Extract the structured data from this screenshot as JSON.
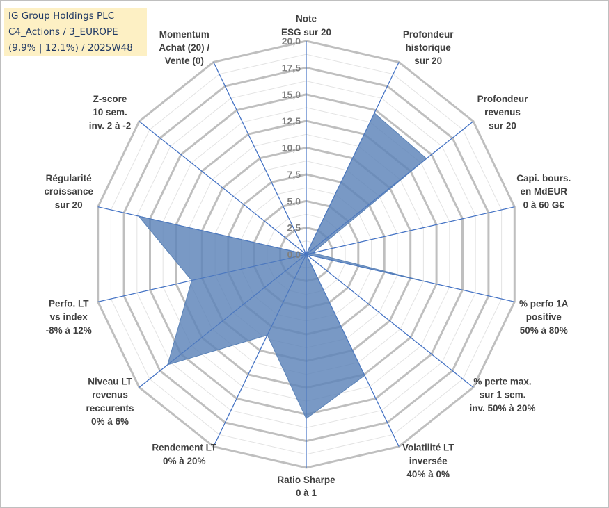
{
  "title": {
    "line1": "IG Group Holdings PLC",
    "line2": "C4_Actions / 3_EUROPE",
    "line3": "(9,9% | 12,1%) / 2025W48"
  },
  "chart_data": {
    "type": "radar",
    "rmin": 0,
    "rmax": 20,
    "tick_step": 2.5,
    "ticks": [
      "0,0",
      "2,5",
      "5,0",
      "7,5",
      "10,0",
      "12,5",
      "15,0",
      "17,5",
      "20,0"
    ],
    "axes": [
      {
        "label": [
          "Note",
          "ESG sur 20"
        ],
        "value": 0
      },
      {
        "label": [
          "Profondeur",
          "historique",
          "sur 20"
        ],
        "value": 14.7
      },
      {
        "label": [
          "Profondeur",
          "revenus",
          "sur 20"
        ],
        "value": 14.4
      },
      {
        "label": [
          "Capi. bours.",
          "en MdEUR",
          "0 à 60 G€"
        ],
        "value": 0.6
      },
      {
        "label": [
          "% perfo 1A",
          "positive",
          "50% à 80%"
        ],
        "value": 11.7
      },
      {
        "label": [
          "% perte max.",
          "sur 1 sem.",
          "inv. 50% à 20%"
        ],
        "value": 0
      },
      {
        "label": [
          "Volatilité LT",
          "inversée",
          "40% à 0%"
        ],
        "value": 12.6
      },
      {
        "label": [
          "Ratio Sharpe",
          "0 à 1"
        ],
        "value": 15.4
      },
      {
        "label": [
          "Rendement LT",
          "0% à 20%"
        ],
        "value": 8.4
      },
      {
        "label": [
          "Niveau LT",
          "revenus",
          "reccurents",
          "0% à 6%"
        ],
        "value": 16.6
      },
      {
        "label": [
          "Perfo. LT",
          "vs index",
          "-8% à 12%"
        ],
        "value": 11.0
      },
      {
        "label": [
          "Régularité",
          "croissance",
          "sur 20"
        ],
        "value": 16.1
      },
      {
        "label": [
          "Z-score",
          "10 sem.",
          "inv. 2 à -2"
        ],
        "value": 0
      },
      {
        "label": [
          "Momentum",
          "Achat (20) /",
          "Vente (0)"
        ],
        "value": 0
      }
    ],
    "colors": {
      "fill": "#5b83b8",
      "fill_opacity": "0.82",
      "spoke": "#4472c4",
      "ring": "#bfbfbf",
      "ring_minor": "#e3e3e3"
    }
  }
}
